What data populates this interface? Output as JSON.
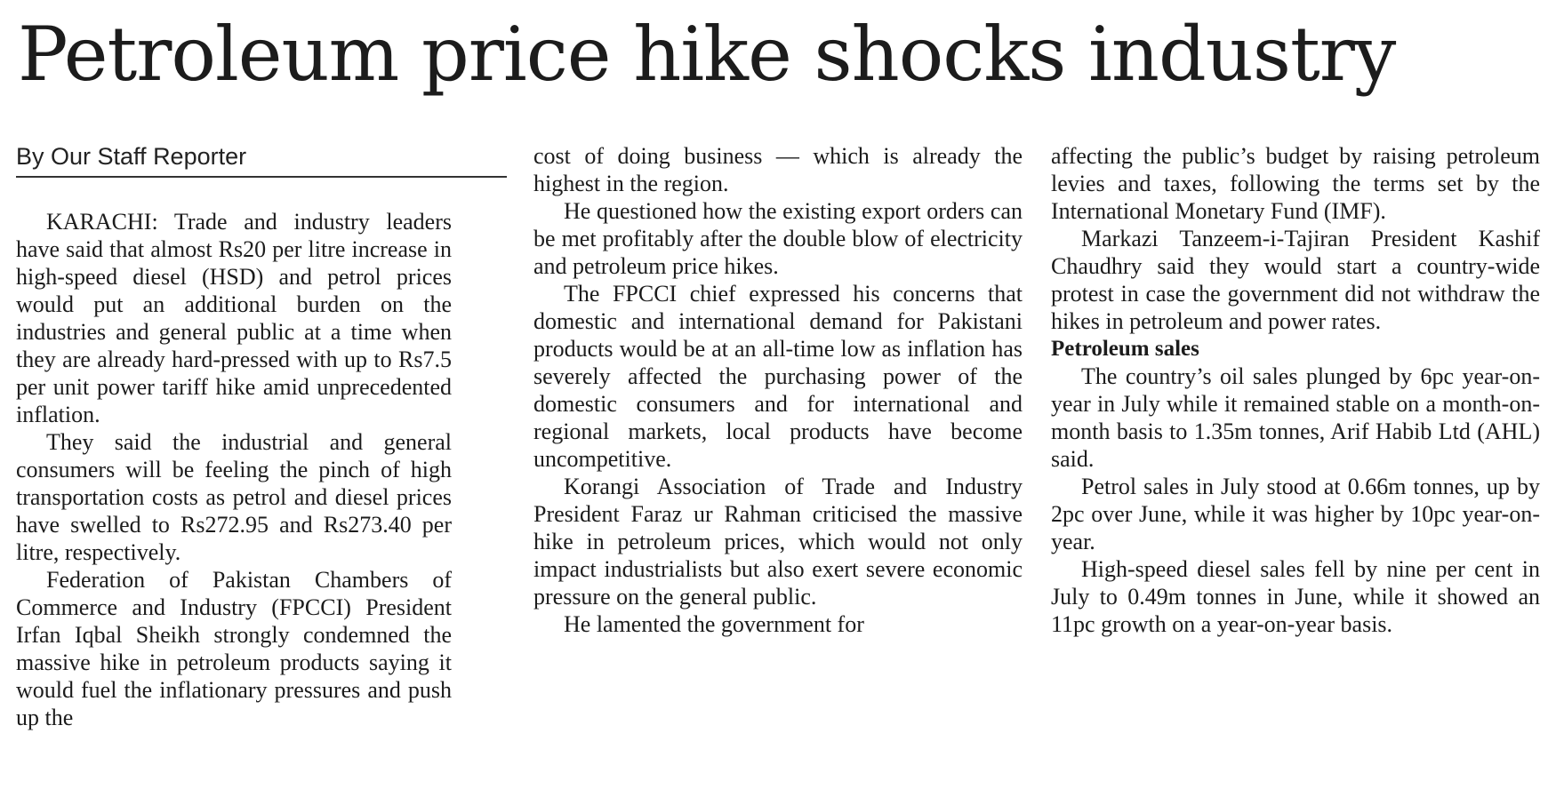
{
  "headline": "Petroleum price hike shocks industry",
  "byline": "By Our Staff Reporter",
  "columns": {
    "col1": {
      "paragraphs": [
        "KARACHI: Trade and industry leaders have said that almost Rs20 per litre increase in high-speed diesel (HSD) and petrol prices would put an additional burden on the industries and general public at a time when they are already hard-pressed with up to Rs7.5 per unit power tariff hike amid unprecedented inflation.",
        "They said the industrial and general consumers will be feeling the pinch of high transportation costs as petrol and diesel prices have swelled to Rs272.95 and Rs273.40 per litre, respectively.",
        "Federation of Pakistan Chambers of Commerce and Industry (FPCCI) President Irfan Iqbal Sheikh strongly condemned the massive hike in petroleum products saying it would fuel the inflationary pressures and push up the"
      ]
    },
    "col2": {
      "continuation": "cost of doing business — which is already the highest in the region.",
      "paragraphs": [
        "He questioned how the existing export orders can be met profitably after the double blow of electricity and petroleum price hikes.",
        "The FPCCI chief expressed his concerns that domestic and international demand for Pakistani products would be at an all-time low as inflation has severely affected the purchasing power of the domestic consumers and for international and regional markets, local products have become uncompetitive.",
        "Korangi Association of Trade and Industry President Faraz ur Rahman criticised the massive hike in petroleum prices, which would not only impact industrialists but also exert severe economic pressure on the general public.",
        "He lamented the government for"
      ]
    },
    "col3": {
      "continuation": "affecting the public’s budget by raising petroleum levies and taxes, following the terms set by the International Monetary Fund (IMF).",
      "paragraphs": [
        "Markazi Tanzeem-i-Tajiran President Kashif Chaudhry said they would start a country-wide protest in case the government did not withdraw the hikes in petroleum and power rates."
      ],
      "subhead": "Petroleum sales",
      "paragraphs_after": [
        "The country’s oil sales plunged by 6pc year-on-year in July while it remained stable on a month-on-month basis to 1.35m tonnes, Arif Habib Ltd (AHL) said.",
        "Petrol sales in July stood at 0.66m tonnes, up by 2pc over June, while it was higher by 10pc year-on-year.",
        "High-speed diesel sales fell by nine per cent in July to 0.49m tonnes in June, while it showed an 11pc growth on a year-on-year basis."
      ]
    }
  }
}
